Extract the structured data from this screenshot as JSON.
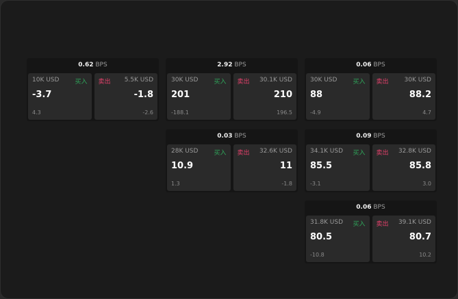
{
  "labels": {
    "unit": "BPS",
    "buy": "买入",
    "sell": "卖出"
  },
  "colors": {
    "buy": "#2fa55a",
    "sell": "#e0406a"
  },
  "cards": [
    {
      "spread": "0.62",
      "buy": {
        "size": "10K USD",
        "price": "-3.7",
        "change": "4.3"
      },
      "sell": {
        "size": "5.5K USD",
        "price": "-1.8",
        "change": "-2.6"
      }
    },
    {
      "spread": "2.92",
      "buy": {
        "size": "30K USD",
        "price": "201",
        "change": "-188.1"
      },
      "sell": {
        "size": "30.1K USD",
        "price": "210",
        "change": "196.5"
      }
    },
    {
      "spread": "0.06",
      "buy": {
        "size": "30K USD",
        "price": "88",
        "change": "-4.9"
      },
      "sell": {
        "size": "30K USD",
        "price": "88.2",
        "change": "4.7"
      }
    },
    {
      "spread": "0.03",
      "buy": {
        "size": "28K USD",
        "price": "10.9",
        "change": "1.3"
      },
      "sell": {
        "size": "32.6K USD",
        "price": "11",
        "change": "-1.8"
      }
    },
    {
      "spread": "0.09",
      "buy": {
        "size": "34.1K USD",
        "price": "85.5",
        "change": "-3.1"
      },
      "sell": {
        "size": "32.8K USD",
        "price": "85.8",
        "change": "3.0"
      }
    },
    {
      "spread": "0.06",
      "buy": {
        "size": "31.8K USD",
        "price": "80.5",
        "change": "-10.8"
      },
      "sell": {
        "size": "39.1K USD",
        "price": "80.7",
        "change": "10.2"
      }
    }
  ]
}
